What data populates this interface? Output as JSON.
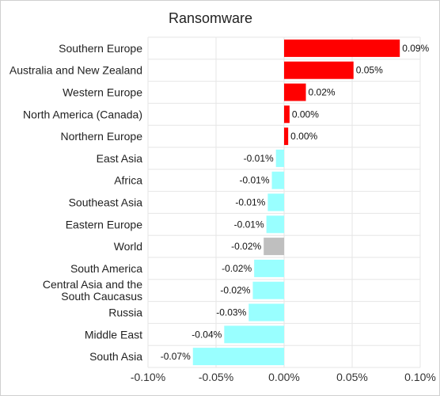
{
  "chart_data": {
    "type": "bar",
    "orientation": "horizontal",
    "title": "Ransomware",
    "xlabel": "",
    "ylabel": "",
    "xlim": [
      -0.1,
      0.1
    ],
    "x_ticks": [
      -0.1,
      -0.05,
      0.0,
      0.05,
      0.1
    ],
    "x_tick_labels": [
      "-0.10%",
      "-0.05%",
      "0.00%",
      "0.05%",
      "0.10%"
    ],
    "grid": true,
    "categories": [
      "Southern Europe",
      "Australia and New Zealand",
      "Western Europe",
      "North America (Canada)",
      "Northern Europe",
      "East Asia",
      "Africa",
      "Southeast Asia",
      "Eastern Europe",
      "World",
      "South America",
      "Central Asia and the South Caucasus",
      "Russia",
      "Middle East",
      "South Asia"
    ],
    "category_label_lines": [
      [
        "Southern Europe"
      ],
      [
        "Australia and New Zealand"
      ],
      [
        "Western Europe"
      ],
      [
        "North America (Canada)"
      ],
      [
        "Northern Europe"
      ],
      [
        "East Asia"
      ],
      [
        "Africa"
      ],
      [
        "Southeast Asia"
      ],
      [
        "Eastern Europe"
      ],
      [
        "World"
      ],
      [
        "South America"
      ],
      [
        "Central Asia and the",
        "South Caucasus"
      ],
      [
        "Russia"
      ],
      [
        "Middle East"
      ],
      [
        "South Asia"
      ]
    ],
    "values": [
      0.085,
      0.051,
      0.016,
      0.004,
      0.003,
      -0.006,
      -0.009,
      -0.012,
      -0.013,
      -0.015,
      -0.022,
      -0.023,
      -0.026,
      -0.044,
      -0.067
    ],
    "data_labels": [
      "0.09%",
      "0.05%",
      "0.02%",
      "0.00%",
      "0.00%",
      "-0.01%",
      "-0.01%",
      "-0.01%",
      "-0.01%",
      "-0.02%",
      "-0.02%",
      "-0.02%",
      "-0.03%",
      "-0.04%",
      "-0.07%"
    ],
    "colors": {
      "positive": "#ff0000",
      "negative": "#99ffff",
      "world": "#bfbfbf"
    },
    "highlight_category": "World"
  }
}
